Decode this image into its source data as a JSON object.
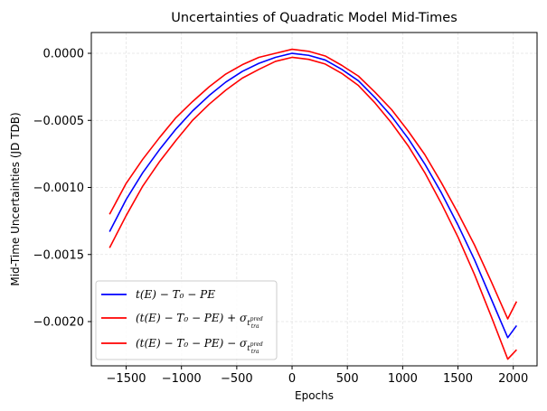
{
  "chart_data": {
    "type": "line",
    "title": "Uncertainties of Quadratic Model Mid-Times",
    "xlabel": "Epochs",
    "ylabel": "Mid-Time Uncertainties (JD TDB)",
    "xlim": [
      -1815,
      2215
    ],
    "ylim": [
      -0.00233,
      0.000155
    ],
    "xticks": [
      -1500,
      -1000,
      -500,
      0,
      500,
      1000,
      1500,
      2000
    ],
    "xtick_labels": [
      "−1500",
      "−1000",
      "−500",
      "0",
      "500",
      "1000",
      "1500",
      "2000"
    ],
    "yticks": [
      0.0,
      -0.0005,
      -0.001,
      -0.0015,
      -0.002
    ],
    "ytick_labels": [
      "0.0000",
      "−0.0005",
      "−0.0010",
      "−0.0015",
      "−0.0020"
    ],
    "grid": true,
    "legend_position": "lower-left",
    "series": [
      {
        "name": "t(E) − T₀ − PE",
        "color": "#0000ff",
        "x": [
          -1650,
          -1500,
          -1350,
          -1200,
          -1050,
          -900,
          -750,
          -600,
          -450,
          -300,
          -150,
          0,
          150,
          300,
          450,
          600,
          750,
          900,
          1050,
          1200,
          1350,
          1500,
          1650,
          1800,
          1950,
          2030
        ],
        "y": [
          -0.00133,
          -0.00109,
          -0.00089,
          -0.00072,
          -0.000565,
          -0.00043,
          -0.000315,
          -0.000215,
          -0.000135,
          -7.5e-05,
          -3e-05,
          0.0,
          -1.5e-05,
          -5e-05,
          -0.00012,
          -0.000205,
          -0.00033,
          -0.00047,
          -0.000635,
          -0.000825,
          -0.00104,
          -0.00128,
          -0.00154,
          -0.00183,
          -0.00212,
          -0.00203
        ]
      },
      {
        "name": "(t(E) − T₀ − PE) + σ",
        "color": "#ff0000",
        "x": [
          -1650,
          -1500,
          -1350,
          -1200,
          -1050,
          -900,
          -750,
          -600,
          -450,
          -300,
          -150,
          0,
          150,
          300,
          450,
          600,
          750,
          900,
          1050,
          1200,
          1350,
          1500,
          1650,
          1800,
          1950,
          2030
        ],
        "y": [
          -0.0012,
          -0.00097,
          -0.00079,
          -0.00063,
          -0.00048,
          -0.00036,
          -0.00025,
          -0.000155,
          -8.5e-05,
          -3e-05,
          0.0,
          3e-05,
          1.5e-05,
          -2e-05,
          -9e-05,
          -0.00017,
          -0.00029,
          -0.00042,
          -0.00058,
          -0.000755,
          -0.000965,
          -0.00119,
          -0.00143,
          -0.0017,
          -0.00198,
          -0.00185
        ]
      },
      {
        "name": "(t(E) − T₀ − PE) − σ",
        "color": "#ff0000",
        "x": [
          -1650,
          -1500,
          -1350,
          -1200,
          -1050,
          -900,
          -750,
          -600,
          -450,
          -300,
          -150,
          0,
          150,
          300,
          450,
          600,
          750,
          900,
          1050,
          1200,
          1350,
          1500,
          1650,
          1800,
          1950,
          2030
        ],
        "y": [
          -0.00145,
          -0.00121,
          -0.00099,
          -0.00081,
          -0.00065,
          -0.0005,
          -0.00038,
          -0.000275,
          -0.000185,
          -0.00012,
          -6e-05,
          -3e-05,
          -4.5e-05,
          -8e-05,
          -0.00015,
          -0.00024,
          -0.00037,
          -0.00052,
          -0.00069,
          -0.00089,
          -0.00112,
          -0.00137,
          -0.00165,
          -0.00196,
          -0.00228,
          -0.00221
        ]
      }
    ],
    "legend": {
      "items": [
        {
          "main": "t(E) − T₀ − PE",
          "sigma": "",
          "sub": "",
          "color": "#0000ff"
        },
        {
          "main": "(t(E) − T₀ − PE) + σ",
          "sigma": "σ",
          "sub": "t",
          "sub2": "tra",
          "sup": "pred",
          "color": "#ff0000"
        },
        {
          "main": "(t(E) − T₀ − PE) − σ",
          "sigma": "σ",
          "sub": "t",
          "sub2": "tra",
          "sup": "pred",
          "color": "#ff0000"
        }
      ]
    }
  }
}
